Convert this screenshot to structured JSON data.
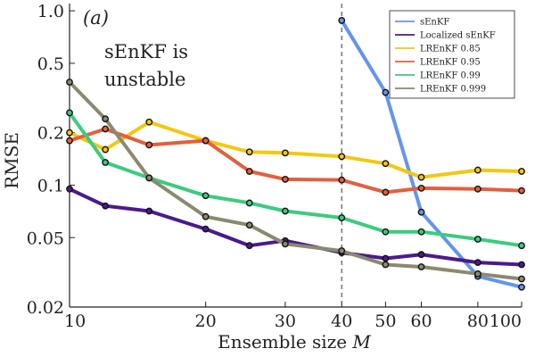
{
  "chart_data": {
    "type": "line",
    "xlabel": "Ensemble size M",
    "ylabel": "RMSE",
    "xscale": "log",
    "yscale": "log",
    "xlim": [
      10,
      100
    ],
    "ylim": [
      0.02,
      1.1
    ],
    "xticks": [
      10,
      20,
      30,
      40,
      50,
      60,
      80,
      100
    ],
    "xtick_labels": [
      "10",
      "20",
      "30",
      "40",
      "50",
      "60",
      "80",
      "100"
    ],
    "yticks": [
      0.02,
      0.05,
      0.1,
      0.2,
      0.5,
      1.0
    ],
    "ytick_labels": [
      "0.02",
      "0.05",
      "0.1",
      "0.2",
      "0.5",
      "1.0"
    ],
    "grid": false,
    "legend_position": "top-right",
    "vline": {
      "x": 40,
      "style": "dashed"
    },
    "panel_label": "(a)",
    "annotation": [
      "sEnKF is",
      "unstable"
    ],
    "series": [
      {
        "name": "sEnKF",
        "color": "#6495ED",
        "x": [
          40,
          50,
          60,
          80,
          100
        ],
        "y": [
          0.88,
          0.34,
          0.07,
          0.03,
          0.026
        ]
      },
      {
        "name": "Localized sEnKF",
        "color": "#4B1A8C",
        "x": [
          10,
          12,
          15,
          20,
          25,
          30,
          40,
          50,
          60,
          80,
          100
        ],
        "y": [
          0.095,
          0.076,
          0.071,
          0.056,
          0.045,
          0.048,
          0.041,
          0.038,
          0.04,
          0.036,
          0.035
        ]
      },
      {
        "name": "LREnKF 0.85",
        "color": "#F2C811",
        "x": [
          10,
          12,
          15,
          20,
          25,
          30,
          40,
          50,
          60,
          80,
          100
        ],
        "y": [
          0.2,
          0.16,
          0.23,
          0.18,
          0.155,
          0.153,
          0.146,
          0.133,
          0.111,
          0.122,
          0.12
        ]
      },
      {
        "name": "LREnKF 0.95",
        "color": "#E35F3E",
        "x": [
          10,
          12,
          15,
          20,
          25,
          30,
          40,
          50,
          60,
          80,
          100
        ],
        "y": [
          0.18,
          0.21,
          0.17,
          0.18,
          0.12,
          0.108,
          0.107,
          0.091,
          0.096,
          0.095,
          0.093
        ]
      },
      {
        "name": "LREnKF 0.99",
        "color": "#3CCB7F",
        "x": [
          10,
          12,
          15,
          20,
          25,
          30,
          40,
          50,
          60,
          80,
          100
        ],
        "y": [
          0.26,
          0.135,
          0.11,
          0.087,
          0.079,
          0.071,
          0.065,
          0.054,
          0.054,
          0.049,
          0.045
        ]
      },
      {
        "name": "LREnKF 0.999",
        "color": "#8A8A70",
        "x": [
          10,
          12,
          15,
          20,
          25,
          30,
          40,
          50,
          60,
          80,
          100
        ],
        "y": [
          0.39,
          0.24,
          0.11,
          0.066,
          0.059,
          0.046,
          0.042,
          0.035,
          0.034,
          0.031,
          0.029
        ]
      }
    ]
  }
}
